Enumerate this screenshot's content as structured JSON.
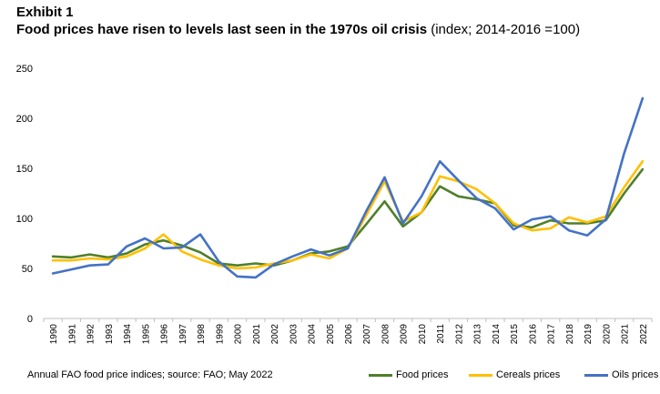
{
  "header": {
    "exhibit": "Exhibit 1",
    "title_bold": "Food prices have risen to levels last seen in the 1970s oil crisis",
    "title_rest": " (index; 2014-2016 =100)"
  },
  "footer": {
    "source": "Annual FAO food price indices; source: FAO; May 2022"
  },
  "chart_data": {
    "type": "line",
    "title": "Food prices have risen to levels last seen in the 1970s oil crisis",
    "subtitle": "(index; 2014-2016 =100)",
    "xlabel": "",
    "ylabel": "",
    "ylim": [
      0,
      250
    ],
    "yticks": [
      0,
      50,
      100,
      150,
      200,
      250
    ],
    "grid": false,
    "legend_position": "bottom-right",
    "x": [
      "1990",
      "1991",
      "1992",
      "1993",
      "1994",
      "1995",
      "1996",
      "1997",
      "1998",
      "1999",
      "2000",
      "2001",
      "2002",
      "2003",
      "2004",
      "2005",
      "2006",
      "2007",
      "2008",
      "2009",
      "2010",
      "2011",
      "2012",
      "2013",
      "2014",
      "2015",
      "2016",
      "2017",
      "2018",
      "2019",
      "2020",
      "2021",
      "2022"
    ],
    "series": [
      {
        "name": "Food prices",
        "color": "#4f7f2c",
        "values": [
          62,
          61,
          64,
          61,
          65,
          74,
          78,
          73,
          66,
          55,
          53,
          55,
          53,
          58,
          65,
          67,
          72,
          94,
          117,
          92,
          106,
          132,
          122,
          119,
          115,
          93,
          91,
          98,
          95,
          95,
          98,
          125,
          149
        ]
      },
      {
        "name": "Cereals prices",
        "color": "#ffc000",
        "values": [
          58,
          58,
          60,
          59,
          62,
          70,
          84,
          67,
          59,
          53,
          50,
          51,
          55,
          58,
          64,
          60,
          70,
          103,
          137,
          97,
          106,
          142,
          137,
          129,
          115,
          95,
          88,
          90,
          101,
          96,
          102,
          131,
          157
        ]
      },
      {
        "name": "Oils prices",
        "color": "#4472c4",
        "values": [
          45,
          49,
          53,
          54,
          72,
          80,
          70,
          71,
          84,
          57,
          42,
          41,
          54,
          62,
          69,
          63,
          70,
          107,
          141,
          95,
          122,
          157,
          138,
          120,
          110,
          89,
          99,
          102,
          88,
          83,
          99,
          165,
          220
        ]
      }
    ]
  }
}
